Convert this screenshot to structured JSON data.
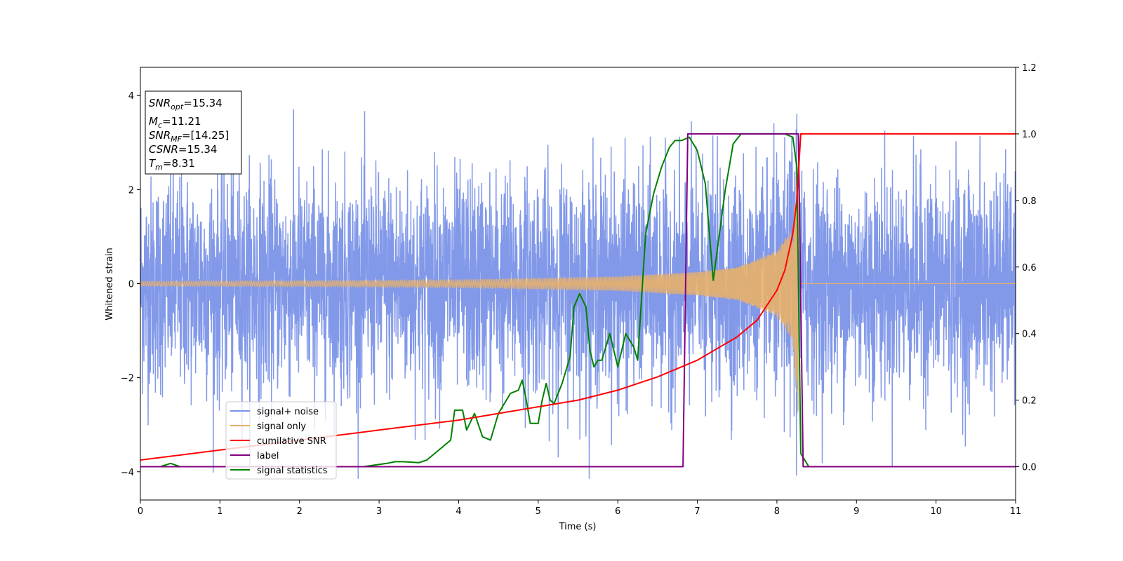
{
  "chart_data": {
    "type": "line",
    "xlabel": "Time (s)",
    "ylabel_left": "Whitened strain",
    "ylabel_right": "",
    "xlim": [
      0,
      11
    ],
    "ylim_left": [
      -4.6,
      4.6
    ],
    "ylim_right": [
      -0.1,
      1.2
    ],
    "x_ticks": [
      "0",
      "1",
      "2",
      "3",
      "4",
      "5",
      "6",
      "7",
      "8",
      "9",
      "10",
      "11"
    ],
    "y_left_ticks": [
      "4",
      "2",
      "0",
      "−2",
      "−4"
    ],
    "y_right_ticks": [
      "1.2",
      "1.0",
      "0.8",
      "0.6",
      "0.4",
      "0.2",
      "0.0"
    ],
    "y_left_tick_values": [
      4,
      2,
      0,
      -2,
      -4
    ],
    "y_right_tick_values": [
      1.2,
      1.0,
      0.8,
      0.6,
      0.4,
      0.2,
      0.0
    ],
    "grid": false,
    "legend_position": "lower-left",
    "info_box": {
      "snr_opt": {
        "base": "SNR",
        "sub": "opt",
        "value": "=15.34"
      },
      "mc": {
        "base": "M",
        "sub": "c",
        "value": "=11.21"
      },
      "snr_mf": {
        "base": "SNR",
        "sub": "MF",
        "value": "=[14.25]"
      },
      "csnr": {
        "base": "CSNR",
        "sub": "",
        "value": "=15.34"
      },
      "tm": {
        "base": "T",
        "sub": "m",
        "value": "=8.31"
      }
    },
    "merger_time": 8.27,
    "series": [
      {
        "name": "signal+ noise",
        "axis": "left",
        "color": "#7b94e8",
        "description_values": "white noise, roughly within ±3 strain, a few spikes to about ±4.1"
      },
      {
        "name": "signal only",
        "axis": "left",
        "color": "#e8b06a",
        "amplitude_points": [
          [
            0,
            0.05
          ],
          [
            2,
            0.06
          ],
          [
            4,
            0.08
          ],
          [
            6,
            0.15
          ],
          [
            7,
            0.25
          ],
          [
            7.5,
            0.35
          ],
          [
            8.0,
            0.7
          ],
          [
            8.2,
            1.2
          ],
          [
            8.27,
            2.8
          ]
        ]
      },
      {
        "name": "cumilative SNR",
        "axis": "right",
        "color": "#ff0000",
        "points": [
          [
            0,
            0.02
          ],
          [
            1,
            0.05
          ],
          [
            2,
            0.08
          ],
          [
            3,
            0.11
          ],
          [
            4,
            0.14
          ],
          [
            5,
            0.18
          ],
          [
            5.5,
            0.2
          ],
          [
            6,
            0.23
          ],
          [
            6.5,
            0.27
          ],
          [
            7,
            0.32
          ],
          [
            7.5,
            0.39
          ],
          [
            7.75,
            0.44
          ],
          [
            8.0,
            0.53
          ],
          [
            8.1,
            0.59
          ],
          [
            8.2,
            0.7
          ],
          [
            8.25,
            0.8
          ],
          [
            8.3,
            1.0
          ],
          [
            11,
            1.0
          ]
        ]
      },
      {
        "name": "label",
        "axis": "right",
        "color": "#800080",
        "points": [
          [
            0,
            0.0
          ],
          [
            6.82,
            0.0
          ],
          [
            6.88,
            1.0
          ],
          [
            8.27,
            1.0
          ],
          [
            8.33,
            0.0
          ],
          [
            11,
            0.0
          ]
        ]
      },
      {
        "name": "signal statistics",
        "axis": "right",
        "color": "#008000",
        "points": [
          [
            0,
            0.0
          ],
          [
            0.25,
            0.0
          ],
          [
            0.38,
            0.01
          ],
          [
            0.5,
            0.0
          ],
          [
            1.0,
            0.0
          ],
          [
            2.0,
            0.0
          ],
          [
            2.8,
            0.0
          ],
          [
            3.1,
            0.01
          ],
          [
            3.2,
            0.015
          ],
          [
            3.3,
            0.015
          ],
          [
            3.5,
            0.012
          ],
          [
            3.6,
            0.02
          ],
          [
            3.7,
            0.04
          ],
          [
            3.8,
            0.06
          ],
          [
            3.9,
            0.08
          ],
          [
            3.95,
            0.17
          ],
          [
            4.05,
            0.17
          ],
          [
            4.1,
            0.11
          ],
          [
            4.2,
            0.16
          ],
          [
            4.3,
            0.09
          ],
          [
            4.4,
            0.08
          ],
          [
            4.5,
            0.16
          ],
          [
            4.6,
            0.2
          ],
          [
            4.65,
            0.22
          ],
          [
            4.75,
            0.23
          ],
          [
            4.8,
            0.26
          ],
          [
            4.85,
            0.2
          ],
          [
            4.9,
            0.13
          ],
          [
            5.0,
            0.13
          ],
          [
            5.05,
            0.2
          ],
          [
            5.1,
            0.25
          ],
          [
            5.15,
            0.2
          ],
          [
            5.2,
            0.19
          ],
          [
            5.3,
            0.25
          ],
          [
            5.4,
            0.33
          ],
          [
            5.45,
            0.48
          ],
          [
            5.52,
            0.52
          ],
          [
            5.6,
            0.48
          ],
          [
            5.65,
            0.35
          ],
          [
            5.7,
            0.3
          ],
          [
            5.75,
            0.32
          ],
          [
            5.8,
            0.32
          ],
          [
            5.9,
            0.4
          ],
          [
            6.0,
            0.3
          ],
          [
            6.1,
            0.4
          ],
          [
            6.2,
            0.36
          ],
          [
            6.25,
            0.32
          ],
          [
            6.35,
            0.7
          ],
          [
            6.45,
            0.82
          ],
          [
            6.55,
            0.9
          ],
          [
            6.65,
            0.96
          ],
          [
            6.72,
            0.98
          ],
          [
            6.8,
            0.98
          ],
          [
            6.9,
            0.99
          ],
          [
            7.0,
            0.95
          ],
          [
            7.1,
            0.85
          ],
          [
            7.2,
            0.56
          ],
          [
            7.25,
            0.65
          ],
          [
            7.35,
            0.83
          ],
          [
            7.45,
            0.97
          ],
          [
            7.55,
            1.0
          ],
          [
            8.1,
            1.0
          ],
          [
            8.2,
            0.99
          ],
          [
            8.25,
            0.9
          ],
          [
            8.3,
            0.04
          ],
          [
            8.4,
            0.0
          ],
          [
            11,
            0.0
          ]
        ]
      }
    ]
  },
  "legend": {
    "items": [
      {
        "label": "signal+ noise",
        "color": "#7b94e8"
      },
      {
        "label": "signal only",
        "color": "#e8b06a"
      },
      {
        "label": "cumilative SNR",
        "color": "#ff0000"
      },
      {
        "label": "label",
        "color": "#800080"
      },
      {
        "label": "signal statistics",
        "color": "#008000"
      }
    ]
  }
}
